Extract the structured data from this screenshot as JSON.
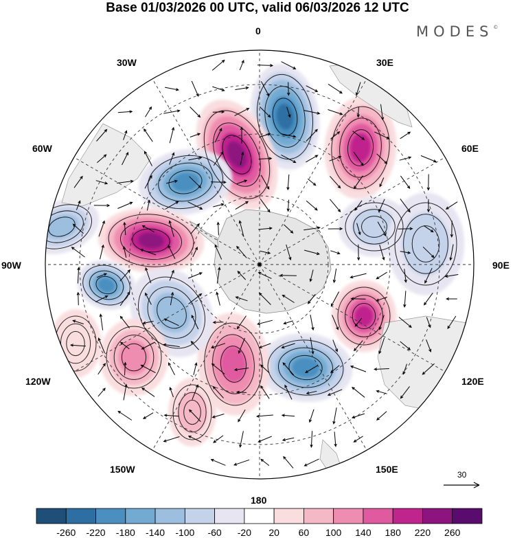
{
  "title": "Base 01/03/2026 00 UTC, valid 06/03/2026 12 UTC",
  "brand": {
    "name": "MODES",
    "mark": "©"
  },
  "longitude_labels": {
    "lon_0": "0",
    "lon_30e": "30E",
    "lon_60e": "60E",
    "lon_90e": "90E",
    "lon_120e": "120E",
    "lon_150e": "150E",
    "lon_180": "180",
    "lon_150w": "150W",
    "lon_120w": "120W",
    "lon_90w": "90W",
    "lon_60w": "60W",
    "lon_30w": "30W"
  },
  "reference_vector": {
    "label": "30"
  },
  "colorbar": {
    "labels": [
      "-260",
      "-220",
      "-180",
      "-140",
      "-100",
      "-60",
      "-20",
      "20",
      "60",
      "100",
      "140",
      "180",
      "220",
      "260"
    ],
    "colors": [
      "#1f4e79",
      "#2e6fa3",
      "#4a8fc0",
      "#73aad2",
      "#9dbfdf",
      "#c4d2ea",
      "#e6e5f1",
      "#ffffff",
      "#f9dddf",
      "#f5b8c6",
      "#ef8db0",
      "#e05aa0",
      "#c0248d",
      "#8d137f",
      "#5a0b6e"
    ]
  },
  "map_fields": {
    "projection": "south-polar-stereographic",
    "anomalies": [
      {
        "label": "neg",
        "value": -240
      },
      {
        "label": "pos",
        "value": 250
      },
      {
        "label": "neg",
        "value": -230
      },
      {
        "label": "pos",
        "value": 230
      },
      {
        "label": "pos",
        "value": 270
      },
      {
        "label": "neg",
        "value": -200
      },
      {
        "label": "pos",
        "value": 220
      },
      {
        "label": "neg",
        "value": -230
      },
      {
        "label": "pos",
        "value": 180
      },
      {
        "label": "neg",
        "value": -120
      },
      {
        "label": "neg",
        "value": -110
      },
      {
        "label": "pos",
        "value": 120
      },
      {
        "label": "neg",
        "value": -110
      },
      {
        "label": "neg",
        "value": -130
      },
      {
        "label": "pos",
        "value": 80
      },
      {
        "label": "pos",
        "value": 60
      }
    ]
  }
}
